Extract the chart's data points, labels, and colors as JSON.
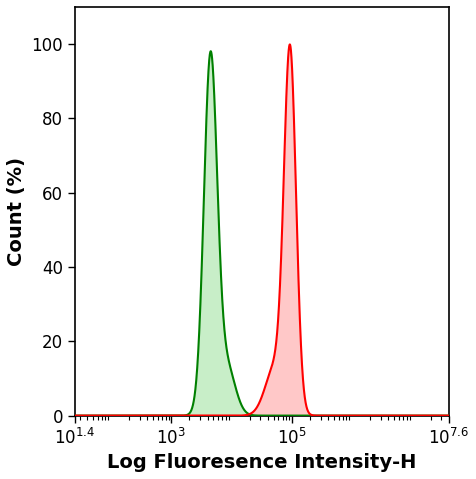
{
  "title": "",
  "xlabel": "Log Fluoresence Intensity-H",
  "ylabel": "Count (%)",
  "xlim_log": [
    1.4,
    7.6
  ],
  "ylim": [
    0,
    110
  ],
  "yticks": [
    0,
    20,
    40,
    60,
    80,
    100
  ],
  "xtick_positions_log": [
    1.4,
    3,
    5,
    7.6
  ],
  "green_main_log": 3.65,
  "green_main_height": 96,
  "green_main_sigma": 0.11,
  "green_second_log": 3.92,
  "green_second_height": 13,
  "green_second_sigma": 0.14,
  "red_main_log": 4.97,
  "red_main_height": 96,
  "red_main_sigma": 0.1,
  "red_second_log": 4.72,
  "red_second_height": 13,
  "red_second_sigma": 0.16,
  "green_line_color": "#008000",
  "green_fill_color": "#c8eec8",
  "red_line_color": "#ff0000",
  "red_fill_color": "#ffc8c8",
  "background_color": "#ffffff",
  "xlabel_fontsize": 14,
  "ylabel_fontsize": 14,
  "tick_fontsize": 12,
  "figwidth": 4.76,
  "figheight": 4.79,
  "dpi": 100
}
